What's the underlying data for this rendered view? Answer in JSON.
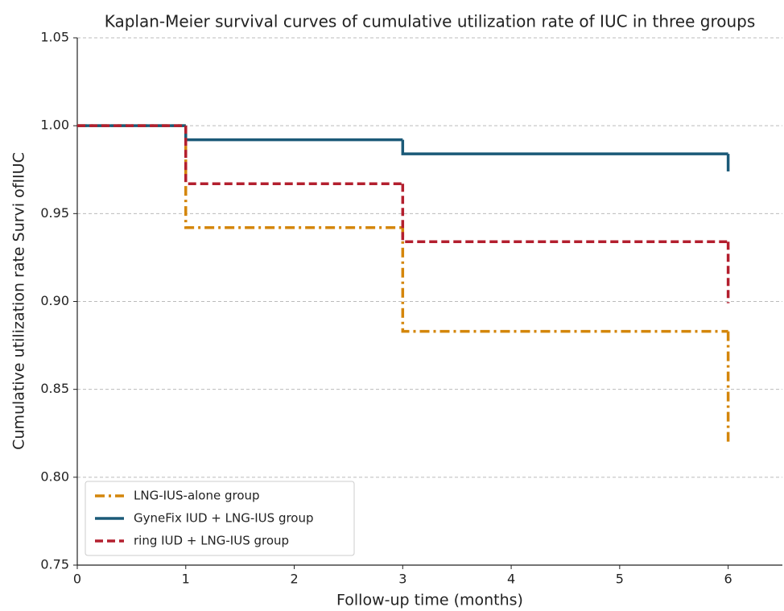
{
  "chart_data": {
    "type": "step",
    "title": "Kaplan-Meier survival curves of cumulative utilization rate of IUC in three groups",
    "x_label": "Follow-up time (months)",
    "y_label": "Cumulative utilization rate Survi ofIIUC",
    "x": [
      0,
      1,
      3,
      6
    ],
    "series": [
      {
        "name": "LNG-IUS-alone group",
        "color": "#d4860b",
        "linestyle": "dashdot",
        "values": [
          1.0,
          0.942,
          0.883,
          0.82
        ]
      },
      {
        "name": "GyneFix IUD + LNG-IUS group",
        "color": "#1b5a78",
        "linestyle": "solid",
        "values": [
          1.0,
          0.992,
          0.984,
          0.974
        ]
      },
      {
        "name": "ring IUD + LNG-IUS group",
        "color": "#b31f2e",
        "linestyle": "dashed",
        "values": [
          1.0,
          0.967,
          0.934,
          0.899
        ]
      }
    ],
    "xlim": [
      0,
      6.5
    ],
    "xticks": [
      0,
      1,
      2,
      3,
      4,
      5,
      6
    ],
    "ylim": [
      0.75,
      1.05
    ],
    "yticks": [
      0.75,
      {
        "value": 0.8,
        "label": "0.80"
      },
      0.85,
      {
        "value": 0.9,
        "label": "0.90"
      },
      0.95,
      {
        "value": 1,
        "label": "1.00"
      },
      1.05
    ],
    "grid": true,
    "legend": "lower left"
  }
}
